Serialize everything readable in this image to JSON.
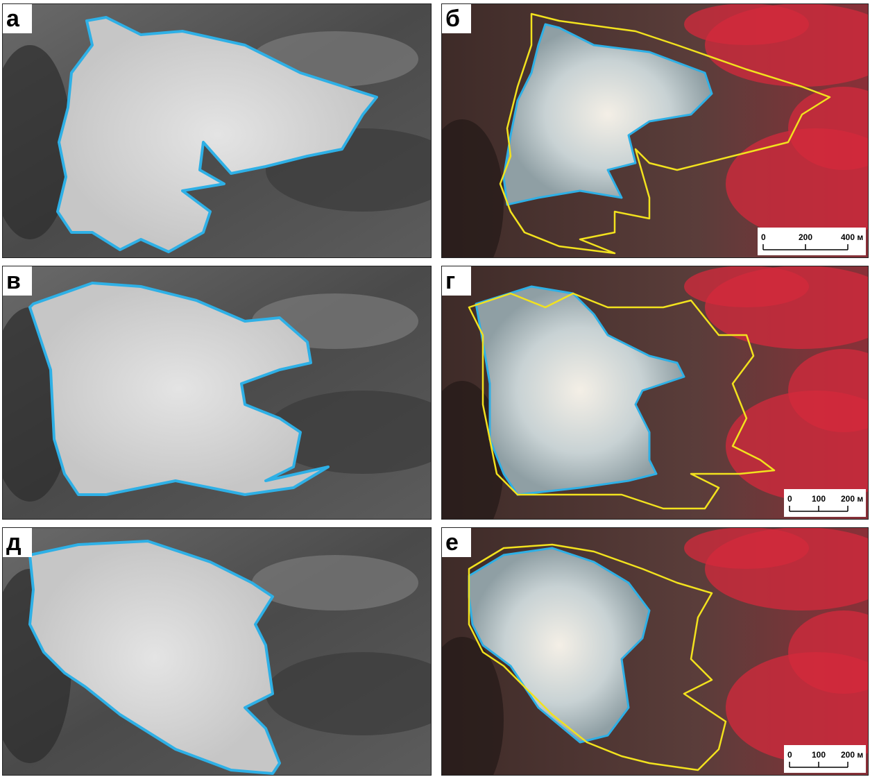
{
  "panels": [
    {
      "label": "а"
    },
    {
      "label": "б",
      "scale_bar": [
        "0",
        "200",
        "400 м"
      ]
    },
    {
      "label": "в"
    },
    {
      "label": "г",
      "scale_bar": [
        "0",
        "100",
        "200 м"
      ]
    },
    {
      "label": "д"
    },
    {
      "label": "е",
      "scale_bar": [
        "0",
        "100",
        "200 м"
      ]
    }
  ]
}
